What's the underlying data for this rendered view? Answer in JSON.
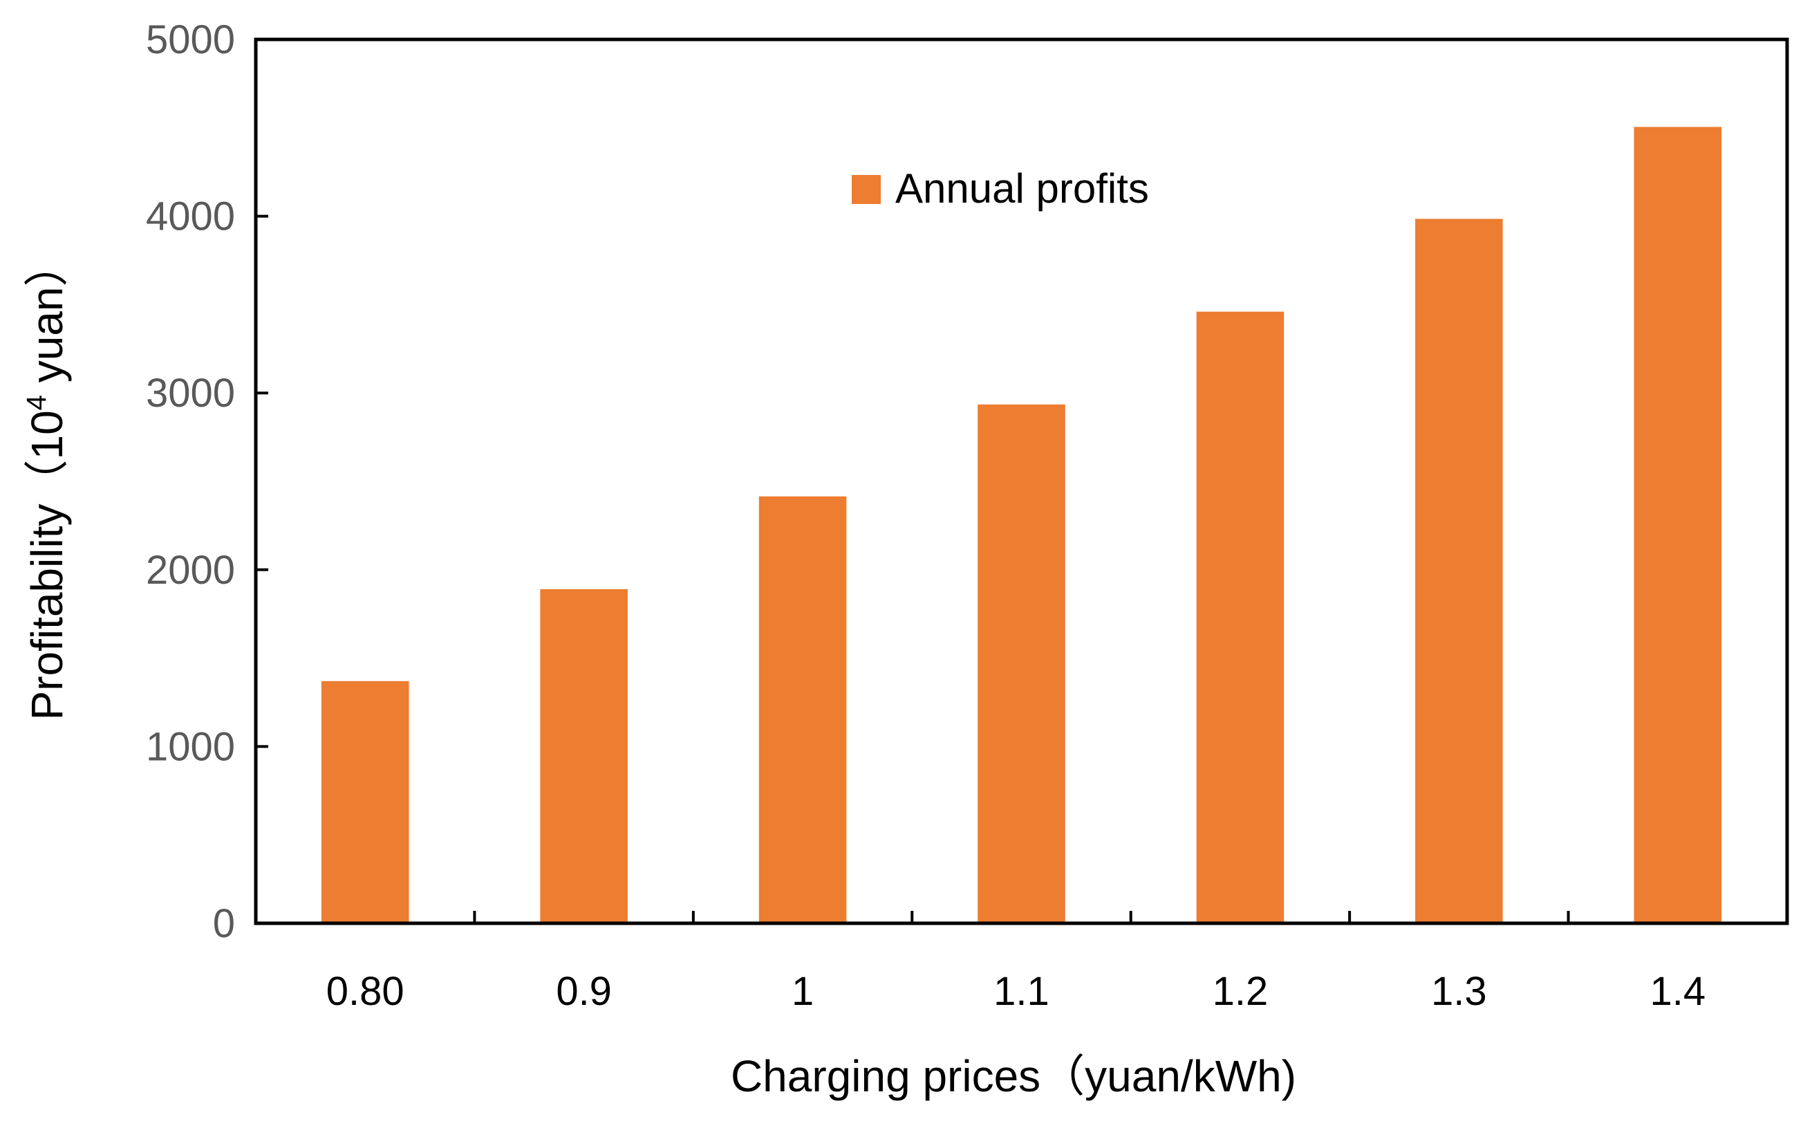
{
  "chart_data": {
    "type": "bar",
    "title": "",
    "categories": [
      "0.80",
      "0.9",
      "1",
      "1.1",
      "1.2",
      "1.3",
      "1.4"
    ],
    "series": [
      {
        "name": "Annual profits",
        "color": "#ED7D31",
        "values": [
          1370,
          1890,
          2415,
          2935,
          3460,
          3985,
          4505
        ]
      }
    ],
    "xlabel": "Charging prices（yuan/kWh)",
    "ylabel_main": "Profitability（10",
    "ylabel_sup": "4",
    "ylabel_tail": " yuan）",
    "ylim": [
      0,
      5000
    ],
    "yticks": [
      "0",
      "1000",
      "2000",
      "3000",
      "4000",
      "5000"
    ],
    "ytick_values": [
      0,
      1000,
      2000,
      3000,
      4000,
      5000
    ],
    "grid": false,
    "legend_position": "top-center"
  }
}
